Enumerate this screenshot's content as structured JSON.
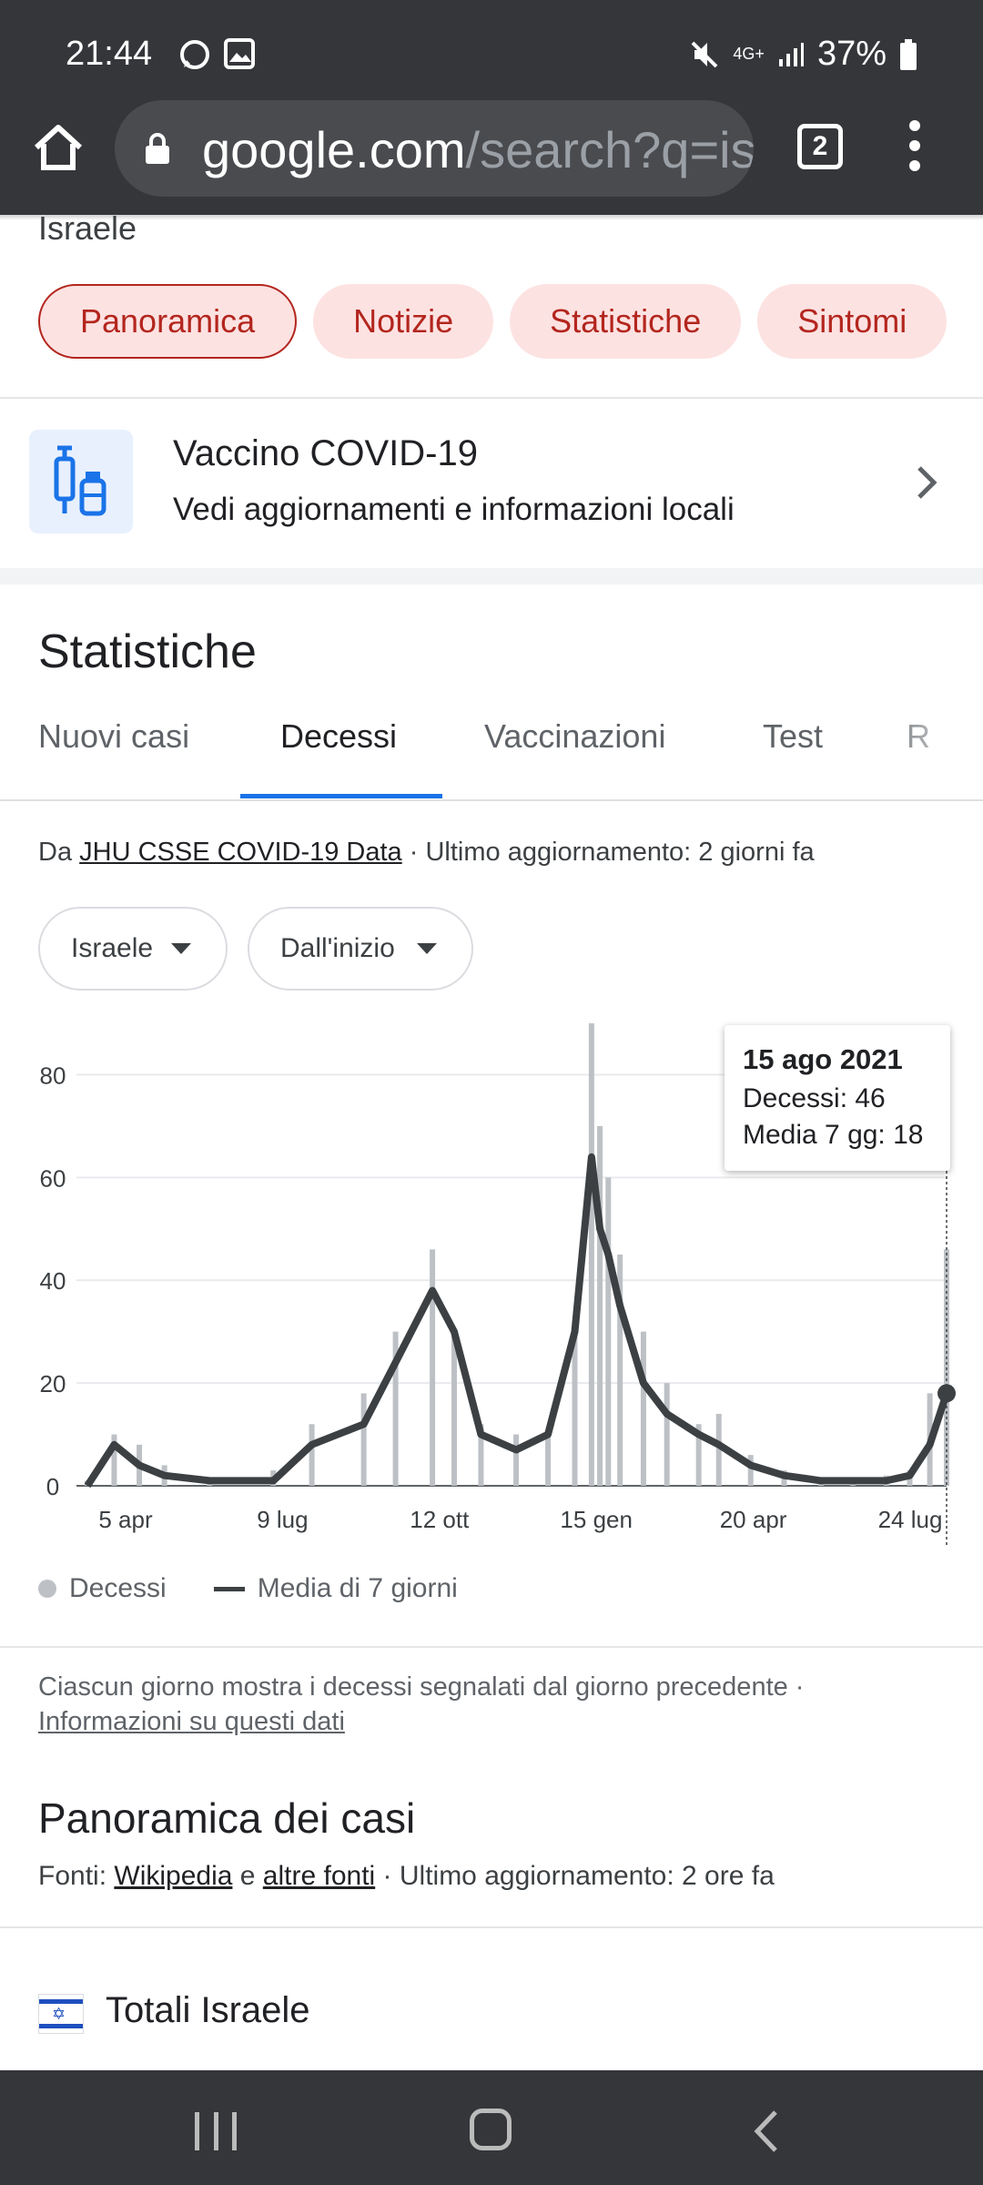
{
  "status_bar": {
    "time": "21:44",
    "battery": "37%",
    "network": "4G+"
  },
  "browser": {
    "url_host": "google.com",
    "url_rest": "/search?q=is",
    "tab_count": "2"
  },
  "search": {
    "crumb": "Israele",
    "chips": [
      "Panoramica",
      "Notizie",
      "Statistiche",
      "Sintomi"
    ]
  },
  "vaccine_card": {
    "title": "Vaccino COVID-19",
    "subtitle": "Vedi aggiornamenti e informazioni locali"
  },
  "stats": {
    "title": "Statistiche",
    "tabs": [
      "Nuovi casi",
      "Decessi",
      "Vaccinazioni",
      "Test",
      "R"
    ],
    "active_tab": "Decessi",
    "source_prefix": "Da ",
    "source_link": "JHU CSSE COVID-19 Data",
    "source_suffix": " · Ultimo aggiornamento: 2 giorni fa",
    "region_dropdown": "Israele",
    "range_dropdown": "Dall'inizio",
    "tooltip": {
      "date": "15 ago 2021",
      "deaths": "Decessi: 46",
      "avg": "Media 7 gg: 18"
    },
    "legend": {
      "bars": "Decessi",
      "line": "Media di 7 giorni"
    },
    "note_text": "Ciascun giorno mostra i decessi segnalati dal giorno precedente  ·",
    "note_link": "Informazioni su questi dati"
  },
  "chart_data": {
    "type": "bar",
    "title": "",
    "xlabel": "",
    "ylabel": "",
    "x_ticks": [
      "5 apr",
      "9 lug",
      "12 ott",
      "15 gen",
      "20 apr",
      "24 lug"
    ],
    "y_ticks": [
      "0",
      "20",
      "40",
      "60",
      "80"
    ],
    "ylim": [
      0,
      90
    ],
    "grid": true,
    "series": [
      {
        "name": "Decessi",
        "kind": "bar",
        "color": "#bdc1c6",
        "x": [
          "2020-03-20",
          "2020-04-05",
          "2020-04-20",
          "2020-05-05",
          "2020-06-01",
          "2020-07-09",
          "2020-08-01",
          "2020-09-01",
          "2020-09-20",
          "2020-10-12",
          "2020-10-25",
          "2020-11-10",
          "2020-12-01",
          "2020-12-20",
          "2021-01-05",
          "2021-01-15",
          "2021-01-20",
          "2021-01-25",
          "2021-02-01",
          "2021-02-15",
          "2021-03-01",
          "2021-03-20",
          "2021-04-01",
          "2021-04-20",
          "2021-05-10",
          "2021-06-01",
          "2021-06-20",
          "2021-07-10",
          "2021-07-24",
          "2021-08-05",
          "2021-08-15"
        ],
        "values": [
          1,
          10,
          8,
          4,
          1,
          3,
          12,
          18,
          30,
          46,
          30,
          12,
          10,
          10,
          30,
          90,
          70,
          60,
          45,
          30,
          20,
          12,
          14,
          6,
          3,
          1,
          1,
          2,
          3,
          18,
          46
        ]
      },
      {
        "name": "Media di 7 giorni",
        "kind": "line",
        "color": "#3c4043",
        "x": [
          "2020-03-20",
          "2020-04-05",
          "2020-04-20",
          "2020-05-05",
          "2020-06-01",
          "2020-07-09",
          "2020-08-01",
          "2020-09-01",
          "2020-09-20",
          "2020-10-12",
          "2020-10-25",
          "2020-11-10",
          "2020-12-01",
          "2020-12-20",
          "2021-01-05",
          "2021-01-15",
          "2021-01-20",
          "2021-01-25",
          "2021-02-01",
          "2021-02-15",
          "2021-03-01",
          "2021-03-20",
          "2021-04-01",
          "2021-04-20",
          "2021-05-10",
          "2021-06-01",
          "2021-06-20",
          "2021-07-10",
          "2021-07-24",
          "2021-08-05",
          "2021-08-15"
        ],
        "values": [
          0,
          8,
          4,
          2,
          1,
          1,
          8,
          12,
          24,
          38,
          30,
          10,
          7,
          10,
          30,
          64,
          50,
          45,
          35,
          20,
          14,
          10,
          8,
          4,
          2,
          1,
          1,
          1,
          2,
          8,
          18
        ]
      }
    ],
    "legend_placement": "bottom-left"
  },
  "cases": {
    "title": "Panoramica dei casi",
    "fonti_prefix": "Fonti: ",
    "fonti_link1": "Wikipedia",
    "fonti_mid": " e ",
    "fonti_link2": "altre fonti",
    "fonti_suffix": " · Ultimo aggiornamento: 2 ore fa",
    "totali": "Totali Israele"
  },
  "colors": {
    "chip_text": "#b3261e",
    "chip_bg": "#fde2e2",
    "tab_accent": "#1a73e8",
    "chrome": "#35363a"
  }
}
